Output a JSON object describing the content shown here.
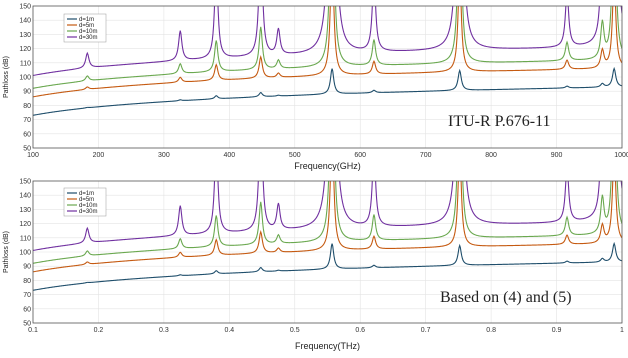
{
  "chart_data": [
    {
      "type": "line",
      "xlabel": "Frequency(GHz)",
      "ylabel": "Pathloss (dB)",
      "annotation": "ITU-R P.676-11",
      "x_unit": "GHz",
      "xlim": [
        100,
        1000
      ],
      "ylim": [
        50,
        150
      ],
      "xticks": [
        100,
        200,
        300,
        400,
        500,
        600,
        700,
        800,
        900,
        1000
      ],
      "yticks": [
        50,
        60,
        70,
        80,
        90,
        100,
        110,
        120,
        130,
        140,
        150
      ],
      "grid": true,
      "legend_position": "top-left",
      "series": [
        {
          "name": "d=1m",
          "color": "#1f4e6b",
          "base": 73
        },
        {
          "name": "d=5m",
          "color": "#c55a11",
          "base": 86
        },
        {
          "name": "d=10m",
          "color": "#6aa84f",
          "base": 92
        },
        {
          "name": "d=30m",
          "color": "#7030a0",
          "base": 101
        }
      ]
    },
    {
      "type": "line",
      "xlabel": "Frequency(THz)",
      "ylabel": "Pathloss (dB)",
      "annotation": "Based on (4) and (5)",
      "x_unit": "THz",
      "xlim": [
        0.1,
        1.0
      ],
      "ylim": [
        50,
        150
      ],
      "xticks": [
        0.1,
        0.2,
        0.3,
        0.4,
        0.5,
        0.6,
        0.7,
        0.8,
        0.9,
        1.0
      ],
      "yticks": [
        50,
        60,
        70,
        80,
        90,
        100,
        110,
        120,
        130,
        140,
        150
      ],
      "grid": true,
      "legend_position": "top-left",
      "series": [
        {
          "name": "d=1m",
          "color": "#1f4e6b",
          "base": 73
        },
        {
          "name": "d=5m",
          "color": "#c55a11",
          "base": 86
        },
        {
          "name": "d=10m",
          "color": "#6aa84f",
          "base": 92
        },
        {
          "name": "d=30m",
          "color": "#7030a0",
          "base": 101
        }
      ]
    }
  ]
}
